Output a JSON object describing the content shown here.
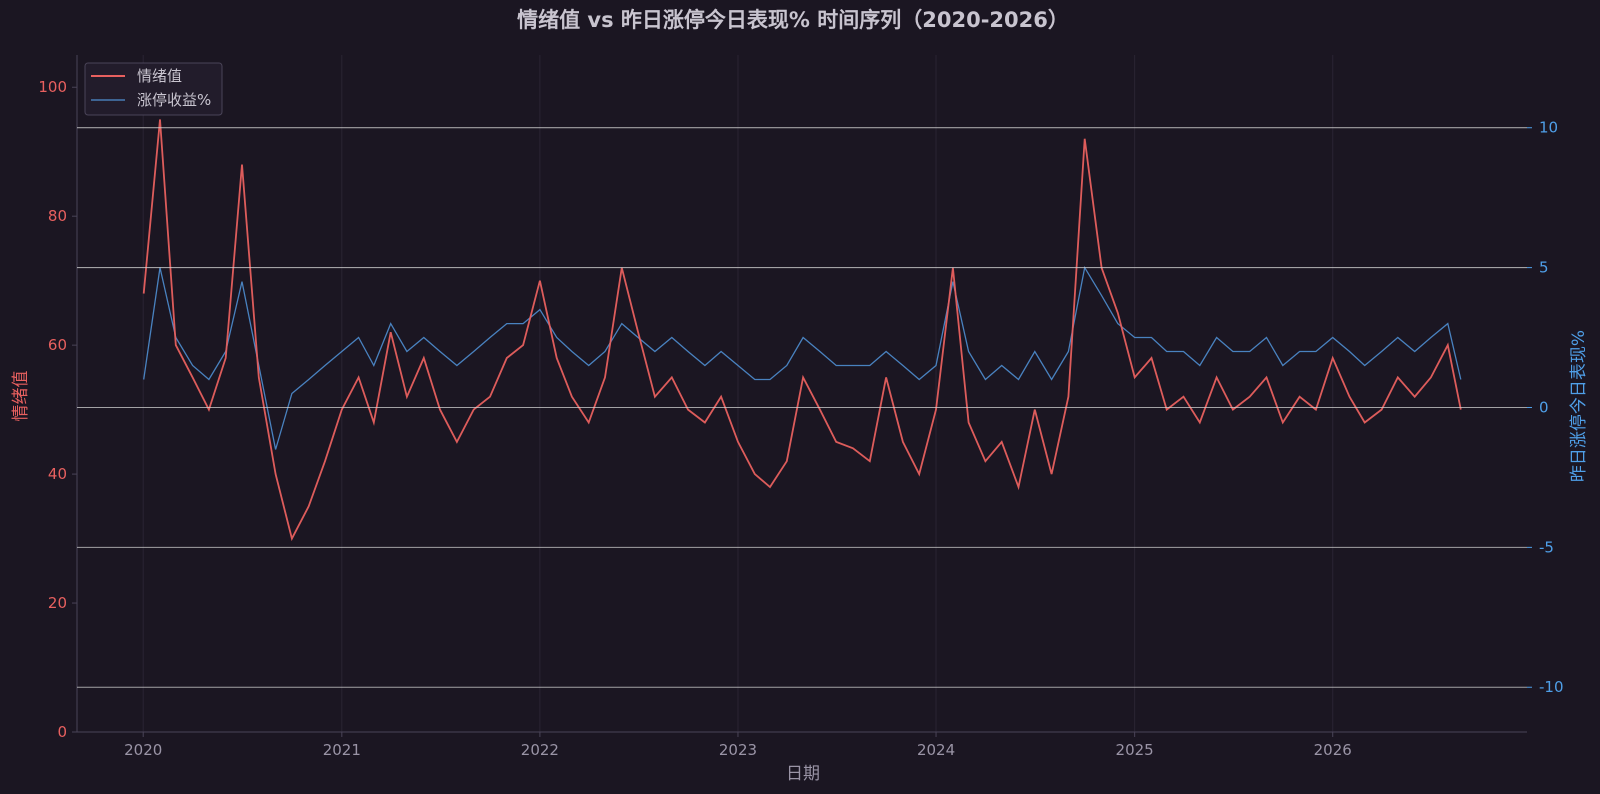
{
  "colors": {
    "background": "#1b1622",
    "sentiment": "#e8605f",
    "return": "#4f8ed1",
    "frame": "#4a4458",
    "text": "#c8c4cf",
    "hline": "#d2d2d2"
  },
  "chart_data": {
    "type": "line",
    "title": "情绪值 vs 昨日涨停今日表现% 时间序列（2020-2026）",
    "xlabel": "日期",
    "ylabel_left": "情绪值",
    "ylabel_right": "昨日涨停今日表现%",
    "x_range": [
      "2019-09-01",
      "2026-12-25"
    ],
    "x_ticks": [
      "2020",
      "2021",
      "2022",
      "2023",
      "2024",
      "2025",
      "2026"
    ],
    "x_tick_dates": [
      "2020-01-01",
      "2021-01-01",
      "2022-01-01",
      "2023-01-01",
      "2024-01-01",
      "2025-01-01",
      "2026-01-01"
    ],
    "ylim_left": [
      0,
      105
    ],
    "yticks_left": [
      "0",
      "20",
      "40",
      "60",
      "80",
      "100"
    ],
    "ylim_right": [
      -11.6,
      12.6
    ],
    "yticks_right": [
      "-10",
      "-5",
      "0",
      "5",
      "10"
    ],
    "horizontal_lines_right": [
      -10,
      -5,
      0,
      5,
      10
    ],
    "legend": {
      "placement": "top-left",
      "entries": [
        "情绪值",
        "涨停收益%"
      ]
    },
    "series": [
      {
        "name": "情绪值",
        "axis": "left",
        "x": [
          "2020-01-02",
          "2020-02-01",
          "2020-03-01",
          "2020-04-01",
          "2020-05-01",
          "2020-06-01",
          "2020-07-01",
          "2020-08-01",
          "2020-09-01",
          "2020-10-01",
          "2020-11-01",
          "2020-12-01",
          "2021-01-01",
          "2021-02-01",
          "2021-03-01",
          "2021-04-01",
          "2021-05-01",
          "2021-06-01",
          "2021-07-01",
          "2021-08-01",
          "2021-09-01",
          "2021-10-01",
          "2021-11-01",
          "2021-12-01",
          "2022-01-01",
          "2022-02-01",
          "2022-03-01",
          "2022-04-01",
          "2022-05-01",
          "2022-06-01",
          "2022-07-01",
          "2022-08-01",
          "2022-09-01",
          "2022-10-01",
          "2022-11-01",
          "2022-12-01",
          "2023-01-01",
          "2023-02-01",
          "2023-03-01",
          "2023-04-01",
          "2023-05-01",
          "2023-06-01",
          "2023-07-01",
          "2023-08-01",
          "2023-09-01",
          "2023-10-01",
          "2023-11-01",
          "2023-12-01",
          "2024-01-01",
          "2024-02-01",
          "2024-03-01",
          "2024-04-01",
          "2024-05-01",
          "2024-06-01",
          "2024-07-01",
          "2024-08-01",
          "2024-09-01",
          "2024-10-01",
          "2024-11-01",
          "2024-12-01",
          "2025-01-01",
          "2025-02-01",
          "2025-03-01",
          "2025-04-01",
          "2025-05-01",
          "2025-06-01",
          "2025-07-01",
          "2025-08-01",
          "2025-09-01",
          "2025-10-01",
          "2025-11-01",
          "2025-12-01",
          "2026-01-01",
          "2026-02-01",
          "2026-03-01",
          "2026-04-01",
          "2026-05-01",
          "2026-06-01",
          "2026-07-01",
          "2026-08-01",
          "2026-08-25"
        ],
        "values": [
          68,
          95,
          60,
          55,
          50,
          58,
          88,
          55,
          40,
          30,
          35,
          42,
          50,
          55,
          48,
          62,
          52,
          58,
          50,
          45,
          50,
          52,
          58,
          60,
          70,
          58,
          52,
          48,
          55,
          72,
          62,
          52,
          55,
          50,
          48,
          52,
          45,
          40,
          38,
          42,
          55,
          50,
          45,
          44,
          42,
          55,
          45,
          40,
          50,
          72,
          48,
          42,
          45,
          38,
          50,
          40,
          52,
          92,
          72,
          65,
          55,
          58,
          50,
          52,
          48,
          55,
          50,
          52,
          55,
          48,
          52,
          50,
          58,
          52,
          48,
          50,
          55,
          52,
          55,
          60,
          50
        ]
      },
      {
        "name": "涨停收益%",
        "axis": "right",
        "x": [
          "2020-01-02",
          "2020-02-01",
          "2020-03-01",
          "2020-04-01",
          "2020-05-01",
          "2020-06-01",
          "2020-07-01",
          "2020-08-01",
          "2020-09-01",
          "2020-10-01",
          "2020-11-01",
          "2020-12-01",
          "2021-01-01",
          "2021-02-01",
          "2021-03-01",
          "2021-04-01",
          "2021-05-01",
          "2021-06-01",
          "2021-07-01",
          "2021-08-01",
          "2021-09-01",
          "2021-10-01",
          "2021-11-01",
          "2021-12-01",
          "2022-01-01",
          "2022-02-01",
          "2022-03-01",
          "2022-04-01",
          "2022-05-01",
          "2022-06-01",
          "2022-07-01",
          "2022-08-01",
          "2022-09-01",
          "2022-10-01",
          "2022-11-01",
          "2022-12-01",
          "2023-01-01",
          "2023-02-01",
          "2023-03-01",
          "2023-04-01",
          "2023-05-01",
          "2023-06-01",
          "2023-07-01",
          "2023-08-01",
          "2023-09-01",
          "2023-10-01",
          "2023-11-01",
          "2023-12-01",
          "2024-01-01",
          "2024-02-01",
          "2024-03-01",
          "2024-04-01",
          "2024-05-01",
          "2024-06-01",
          "2024-07-01",
          "2024-08-01",
          "2024-09-01",
          "2024-10-01",
          "2024-11-01",
          "2024-12-01",
          "2025-01-01",
          "2025-02-01",
          "2025-03-01",
          "2025-04-01",
          "2025-05-01",
          "2025-06-01",
          "2025-07-01",
          "2025-08-01",
          "2025-09-01",
          "2025-10-01",
          "2025-11-01",
          "2025-12-01",
          "2026-01-01",
          "2026-02-01",
          "2026-03-01",
          "2026-04-01",
          "2026-05-01",
          "2026-06-01",
          "2026-07-01",
          "2026-08-01",
          "2026-08-25"
        ],
        "values": [
          1.0,
          5.0,
          2.5,
          1.5,
          1.0,
          2.0,
          4.5,
          1.5,
          -1.5,
          0.5,
          1.0,
          1.5,
          2.0,
          2.5,
          1.5,
          3.0,
          2.0,
          2.5,
          2.0,
          1.5,
          2.0,
          2.5,
          3.0,
          3.0,
          3.5,
          2.5,
          2.0,
          1.5,
          2.0,
          3.0,
          2.5,
          2.0,
          2.5,
          2.0,
          1.5,
          2.0,
          1.5,
          1.0,
          1.0,
          1.5,
          2.5,
          2.0,
          1.5,
          1.5,
          1.5,
          2.0,
          1.5,
          1.0,
          1.5,
          4.5,
          2.0,
          1.0,
          1.5,
          1.0,
          2.0,
          1.0,
          2.0,
          5.0,
          4.0,
          3.0,
          2.5,
          2.5,
          2.0,
          2.0,
          1.5,
          2.5,
          2.0,
          2.0,
          2.5,
          1.5,
          2.0,
          2.0,
          2.5,
          2.0,
          1.5,
          2.0,
          2.5,
          2.0,
          2.5,
          3.0,
          1.0
        ]
      }
    ]
  }
}
